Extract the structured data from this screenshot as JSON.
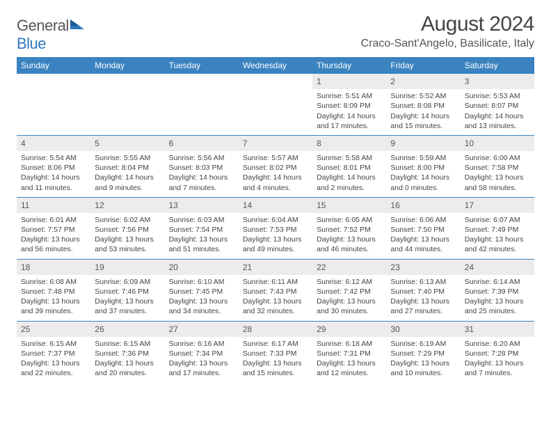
{
  "logo": {
    "part1": "General",
    "part2": "Blue"
  },
  "title": "August 2024",
  "location": "Craco-Sant'Angelo, Basilicate, Italy",
  "colors": {
    "header_bg": "#3b83c0",
    "header_text": "#ffffff",
    "daynum_bg": "#ececec",
    "border": "#3b83c0",
    "logo_blue": "#2f77bb",
    "text": "#444444",
    "page_bg": "#ffffff"
  },
  "day_headers": [
    "Sunday",
    "Monday",
    "Tuesday",
    "Wednesday",
    "Thursday",
    "Friday",
    "Saturday"
  ],
  "weeks": [
    [
      {
        "day": "",
        "sunrise": "",
        "sunset": "",
        "daylight": ""
      },
      {
        "day": "",
        "sunrise": "",
        "sunset": "",
        "daylight": ""
      },
      {
        "day": "",
        "sunrise": "",
        "sunset": "",
        "daylight": ""
      },
      {
        "day": "",
        "sunrise": "",
        "sunset": "",
        "daylight": ""
      },
      {
        "day": "1",
        "sunrise": "Sunrise: 5:51 AM",
        "sunset": "Sunset: 8:09 PM",
        "daylight": "Daylight: 14 hours and 17 minutes."
      },
      {
        "day": "2",
        "sunrise": "Sunrise: 5:52 AM",
        "sunset": "Sunset: 8:08 PM",
        "daylight": "Daylight: 14 hours and 15 minutes."
      },
      {
        "day": "3",
        "sunrise": "Sunrise: 5:53 AM",
        "sunset": "Sunset: 8:07 PM",
        "daylight": "Daylight: 14 hours and 13 minutes."
      }
    ],
    [
      {
        "day": "4",
        "sunrise": "Sunrise: 5:54 AM",
        "sunset": "Sunset: 8:06 PM",
        "daylight": "Daylight: 14 hours and 11 minutes."
      },
      {
        "day": "5",
        "sunrise": "Sunrise: 5:55 AM",
        "sunset": "Sunset: 8:04 PM",
        "daylight": "Daylight: 14 hours and 9 minutes."
      },
      {
        "day": "6",
        "sunrise": "Sunrise: 5:56 AM",
        "sunset": "Sunset: 8:03 PM",
        "daylight": "Daylight: 14 hours and 7 minutes."
      },
      {
        "day": "7",
        "sunrise": "Sunrise: 5:57 AM",
        "sunset": "Sunset: 8:02 PM",
        "daylight": "Daylight: 14 hours and 4 minutes."
      },
      {
        "day": "8",
        "sunrise": "Sunrise: 5:58 AM",
        "sunset": "Sunset: 8:01 PM",
        "daylight": "Daylight: 14 hours and 2 minutes."
      },
      {
        "day": "9",
        "sunrise": "Sunrise: 5:59 AM",
        "sunset": "Sunset: 8:00 PM",
        "daylight": "Daylight: 14 hours and 0 minutes."
      },
      {
        "day": "10",
        "sunrise": "Sunrise: 6:00 AM",
        "sunset": "Sunset: 7:58 PM",
        "daylight": "Daylight: 13 hours and 58 minutes."
      }
    ],
    [
      {
        "day": "11",
        "sunrise": "Sunrise: 6:01 AM",
        "sunset": "Sunset: 7:57 PM",
        "daylight": "Daylight: 13 hours and 56 minutes."
      },
      {
        "day": "12",
        "sunrise": "Sunrise: 6:02 AM",
        "sunset": "Sunset: 7:56 PM",
        "daylight": "Daylight: 13 hours and 53 minutes."
      },
      {
        "day": "13",
        "sunrise": "Sunrise: 6:03 AM",
        "sunset": "Sunset: 7:54 PM",
        "daylight": "Daylight: 13 hours and 51 minutes."
      },
      {
        "day": "14",
        "sunrise": "Sunrise: 6:04 AM",
        "sunset": "Sunset: 7:53 PM",
        "daylight": "Daylight: 13 hours and 49 minutes."
      },
      {
        "day": "15",
        "sunrise": "Sunrise: 6:05 AM",
        "sunset": "Sunset: 7:52 PM",
        "daylight": "Daylight: 13 hours and 46 minutes."
      },
      {
        "day": "16",
        "sunrise": "Sunrise: 6:06 AM",
        "sunset": "Sunset: 7:50 PM",
        "daylight": "Daylight: 13 hours and 44 minutes."
      },
      {
        "day": "17",
        "sunrise": "Sunrise: 6:07 AM",
        "sunset": "Sunset: 7:49 PM",
        "daylight": "Daylight: 13 hours and 42 minutes."
      }
    ],
    [
      {
        "day": "18",
        "sunrise": "Sunrise: 6:08 AM",
        "sunset": "Sunset: 7:48 PM",
        "daylight": "Daylight: 13 hours and 39 minutes."
      },
      {
        "day": "19",
        "sunrise": "Sunrise: 6:09 AM",
        "sunset": "Sunset: 7:46 PM",
        "daylight": "Daylight: 13 hours and 37 minutes."
      },
      {
        "day": "20",
        "sunrise": "Sunrise: 6:10 AM",
        "sunset": "Sunset: 7:45 PM",
        "daylight": "Daylight: 13 hours and 34 minutes."
      },
      {
        "day": "21",
        "sunrise": "Sunrise: 6:11 AM",
        "sunset": "Sunset: 7:43 PM",
        "daylight": "Daylight: 13 hours and 32 minutes."
      },
      {
        "day": "22",
        "sunrise": "Sunrise: 6:12 AM",
        "sunset": "Sunset: 7:42 PM",
        "daylight": "Daylight: 13 hours and 30 minutes."
      },
      {
        "day": "23",
        "sunrise": "Sunrise: 6:13 AM",
        "sunset": "Sunset: 7:40 PM",
        "daylight": "Daylight: 13 hours and 27 minutes."
      },
      {
        "day": "24",
        "sunrise": "Sunrise: 6:14 AM",
        "sunset": "Sunset: 7:39 PM",
        "daylight": "Daylight: 13 hours and 25 minutes."
      }
    ],
    [
      {
        "day": "25",
        "sunrise": "Sunrise: 6:15 AM",
        "sunset": "Sunset: 7:37 PM",
        "daylight": "Daylight: 13 hours and 22 minutes."
      },
      {
        "day": "26",
        "sunrise": "Sunrise: 6:15 AM",
        "sunset": "Sunset: 7:36 PM",
        "daylight": "Daylight: 13 hours and 20 minutes."
      },
      {
        "day": "27",
        "sunrise": "Sunrise: 6:16 AM",
        "sunset": "Sunset: 7:34 PM",
        "daylight": "Daylight: 13 hours and 17 minutes."
      },
      {
        "day": "28",
        "sunrise": "Sunrise: 6:17 AM",
        "sunset": "Sunset: 7:33 PM",
        "daylight": "Daylight: 13 hours and 15 minutes."
      },
      {
        "day": "29",
        "sunrise": "Sunrise: 6:18 AM",
        "sunset": "Sunset: 7:31 PM",
        "daylight": "Daylight: 13 hours and 12 minutes."
      },
      {
        "day": "30",
        "sunrise": "Sunrise: 6:19 AM",
        "sunset": "Sunset: 7:29 PM",
        "daylight": "Daylight: 13 hours and 10 minutes."
      },
      {
        "day": "31",
        "sunrise": "Sunrise: 6:20 AM",
        "sunset": "Sunset: 7:28 PM",
        "daylight": "Daylight: 13 hours and 7 minutes."
      }
    ]
  ]
}
